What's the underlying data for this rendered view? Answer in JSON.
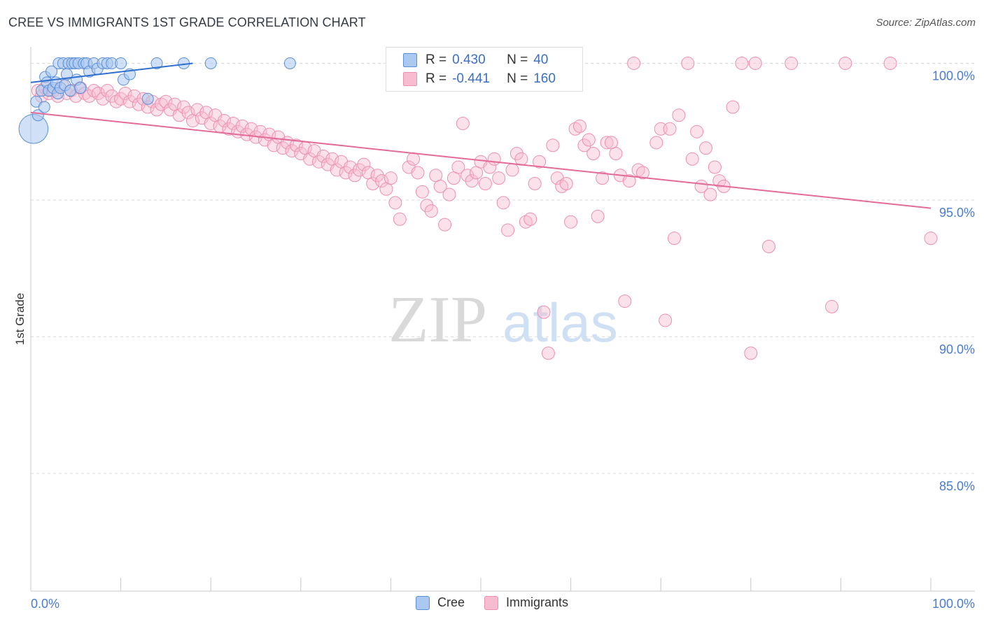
{
  "title": "CREE VS IMMIGRANTS 1ST GRADE CORRELATION CHART",
  "source": "Source: ZipAtlas.com",
  "watermark": {
    "zip": "ZIP",
    "atlas": "atlas"
  },
  "legend": {
    "rows": [
      {
        "r_label": "R =",
        "r_value": "0.430",
        "n_label": "N =",
        "n_value": "40"
      },
      {
        "r_label": "R =",
        "r_value": "-0.441",
        "n_label": "N =",
        "n_value": "160"
      }
    ]
  },
  "colors": {
    "cree_fill": "#aac8f0",
    "cree_stroke": "#5a8fd8",
    "cree_line": "#2f6fcf",
    "imm_fill": "#f7bcd0",
    "imm_stroke": "#ec8fb0",
    "imm_line": "#e46a97",
    "tick_label": "#4a7bd0",
    "grid": "#dcdcdc"
  },
  "chart_data": {
    "type": "scatter",
    "title": "CREE VS IMMIGRANTS 1ST GRADE CORRELATION CHART",
    "xlabel": "",
    "ylabel": "1st Grade",
    "xlim": [
      0,
      100
    ],
    "ylim": [
      80.7,
      100.6
    ],
    "x_tick_labels": [
      "0.0%",
      "100.0%"
    ],
    "y_ticks": [
      100,
      95,
      90,
      85
    ],
    "y_tick_labels": [
      "100.0%",
      "95.0%",
      "90.0%",
      "85.0%"
    ],
    "legend_position": "bottom",
    "series": [
      {
        "name": "Cree",
        "r": 0.43,
        "n": 40,
        "trend": {
          "x": [
            0,
            18
          ],
          "y": [
            99.3,
            100.0
          ]
        },
        "points": [
          {
            "x": 0.3,
            "y": 97.6,
            "s": 2.6
          },
          {
            "x": 0.6,
            "y": 98.6
          },
          {
            "x": 0.8,
            "y": 98.1
          },
          {
            "x": 1.2,
            "y": 99.0
          },
          {
            "x": 1.5,
            "y": 98.4
          },
          {
            "x": 1.6,
            "y": 99.5
          },
          {
            "x": 1.8,
            "y": 99.3
          },
          {
            "x": 2.0,
            "y": 99.0
          },
          {
            "x": 2.3,
            "y": 99.7
          },
          {
            "x": 2.5,
            "y": 99.1
          },
          {
            "x": 2.8,
            "y": 99.3
          },
          {
            "x": 3.0,
            "y": 98.9
          },
          {
            "x": 3.1,
            "y": 100.0
          },
          {
            "x": 3.3,
            "y": 99.1
          },
          {
            "x": 3.6,
            "y": 100.0
          },
          {
            "x": 3.8,
            "y": 99.2
          },
          {
            "x": 4.0,
            "y": 99.6
          },
          {
            "x": 4.2,
            "y": 100.0
          },
          {
            "x": 4.4,
            "y": 99.0
          },
          {
            "x": 4.6,
            "y": 100.0
          },
          {
            "x": 4.9,
            "y": 100.0
          },
          {
            "x": 5.1,
            "y": 99.4
          },
          {
            "x": 5.3,
            "y": 100.0
          },
          {
            "x": 5.5,
            "y": 99.1
          },
          {
            "x": 5.9,
            "y": 100.0
          },
          {
            "x": 6.2,
            "y": 100.0
          },
          {
            "x": 6.5,
            "y": 99.7
          },
          {
            "x": 7.0,
            "y": 100.0
          },
          {
            "x": 7.4,
            "y": 99.8
          },
          {
            "x": 8.0,
            "y": 100.0
          },
          {
            "x": 8.5,
            "y": 100.0
          },
          {
            "x": 9.0,
            "y": 100.0
          },
          {
            "x": 10.0,
            "y": 100.0
          },
          {
            "x": 10.3,
            "y": 99.4
          },
          {
            "x": 13.0,
            "y": 98.7
          },
          {
            "x": 11.0,
            "y": 99.6
          },
          {
            "x": 14.0,
            "y": 100.0
          },
          {
            "x": 17.0,
            "y": 100.0
          },
          {
            "x": 20.0,
            "y": 100.0
          },
          {
            "x": 28.8,
            "y": 100.0
          }
        ]
      },
      {
        "name": "Immigrants",
        "r": -0.441,
        "n": 160,
        "trend": {
          "x": [
            0,
            100
          ],
          "y": [
            98.2,
            94.7
          ]
        },
        "points": [
          {
            "x": 0.8,
            "y": 99.0
          },
          {
            "x": 1.2,
            "y": 98.8
          },
          {
            "x": 1.6,
            "y": 99.1
          },
          {
            "x": 2.0,
            "y": 98.9
          },
          {
            "x": 2.5,
            "y": 99.0
          },
          {
            "x": 3.0,
            "y": 98.8
          },
          {
            "x": 3.5,
            "y": 99.2
          },
          {
            "x": 4.0,
            "y": 98.9
          },
          {
            "x": 4.5,
            "y": 99.0
          },
          {
            "x": 5.0,
            "y": 98.8
          },
          {
            "x": 5.5,
            "y": 99.1
          },
          {
            "x": 6.0,
            "y": 98.9
          },
          {
            "x": 6.5,
            "y": 98.8
          },
          {
            "x": 7.0,
            "y": 99.0
          },
          {
            "x": 7.5,
            "y": 98.9
          },
          {
            "x": 8.0,
            "y": 98.7
          },
          {
            "x": 8.5,
            "y": 99.0
          },
          {
            "x": 9.0,
            "y": 98.8
          },
          {
            "x": 9.5,
            "y": 98.6
          },
          {
            "x": 10.0,
            "y": 98.7
          },
          {
            "x": 10.5,
            "y": 98.9
          },
          {
            "x": 11.0,
            "y": 98.6
          },
          {
            "x": 11.5,
            "y": 98.8
          },
          {
            "x": 12.0,
            "y": 98.5
          },
          {
            "x": 12.5,
            "y": 98.7
          },
          {
            "x": 13.0,
            "y": 98.4
          },
          {
            "x": 13.5,
            "y": 98.6
          },
          {
            "x": 14.0,
            "y": 98.3
          },
          {
            "x": 14.5,
            "y": 98.5
          },
          {
            "x": 15.0,
            "y": 98.6
          },
          {
            "x": 15.5,
            "y": 98.3
          },
          {
            "x": 16.0,
            "y": 98.5
          },
          {
            "x": 16.5,
            "y": 98.1
          },
          {
            "x": 17.0,
            "y": 98.4
          },
          {
            "x": 17.5,
            "y": 98.2
          },
          {
            "x": 18.0,
            "y": 97.9
          },
          {
            "x": 18.5,
            "y": 98.3
          },
          {
            "x": 19.0,
            "y": 98.0
          },
          {
            "x": 19.5,
            "y": 98.2
          },
          {
            "x": 20.0,
            "y": 97.8
          },
          {
            "x": 20.5,
            "y": 98.1
          },
          {
            "x": 21.0,
            "y": 97.7
          },
          {
            "x": 21.5,
            "y": 97.9
          },
          {
            "x": 22.0,
            "y": 97.6
          },
          {
            "x": 22.5,
            "y": 97.8
          },
          {
            "x": 23.0,
            "y": 97.5
          },
          {
            "x": 23.5,
            "y": 97.7
          },
          {
            "x": 24.0,
            "y": 97.4
          },
          {
            "x": 24.5,
            "y": 97.6
          },
          {
            "x": 25.0,
            "y": 97.3
          },
          {
            "x": 25.5,
            "y": 97.5
          },
          {
            "x": 26.0,
            "y": 97.2
          },
          {
            "x": 26.5,
            "y": 97.4
          },
          {
            "x": 27.0,
            "y": 97.0
          },
          {
            "x": 27.5,
            "y": 97.3
          },
          {
            "x": 28.0,
            "y": 96.9
          },
          {
            "x": 28.5,
            "y": 97.1
          },
          {
            "x": 29.0,
            "y": 96.8
          },
          {
            "x": 29.5,
            "y": 97.0
          },
          {
            "x": 30.0,
            "y": 96.7
          },
          {
            "x": 30.5,
            "y": 96.9
          },
          {
            "x": 31.0,
            "y": 96.5
          },
          {
            "x": 31.5,
            "y": 96.8
          },
          {
            "x": 32.0,
            "y": 96.4
          },
          {
            "x": 32.5,
            "y": 96.6
          },
          {
            "x": 33.0,
            "y": 96.3
          },
          {
            "x": 33.5,
            "y": 96.5
          },
          {
            "x": 34.0,
            "y": 96.1
          },
          {
            "x": 34.5,
            "y": 96.4
          },
          {
            "x": 35.0,
            "y": 96.0
          },
          {
            "x": 35.5,
            "y": 96.2
          },
          {
            "x": 36.0,
            "y": 95.9
          },
          {
            "x": 36.5,
            "y": 96.1
          },
          {
            "x": 37.0,
            "y": 96.3
          },
          {
            "x": 37.5,
            "y": 96.0
          },
          {
            "x": 38.0,
            "y": 95.6
          },
          {
            "x": 38.5,
            "y": 95.9
          },
          {
            "x": 39.0,
            "y": 95.7
          },
          {
            "x": 39.5,
            "y": 95.4
          },
          {
            "x": 40.0,
            "y": 95.8
          },
          {
            "x": 40.5,
            "y": 94.9
          },
          {
            "x": 41.0,
            "y": 94.3
          },
          {
            "x": 42.0,
            "y": 96.2
          },
          {
            "x": 42.5,
            "y": 96.5
          },
          {
            "x": 43.0,
            "y": 96.0
          },
          {
            "x": 43.5,
            "y": 95.3
          },
          {
            "x": 44.0,
            "y": 94.8
          },
          {
            "x": 44.5,
            "y": 94.6
          },
          {
            "x": 45.0,
            "y": 95.9
          },
          {
            "x": 45.5,
            "y": 95.5
          },
          {
            "x": 46.0,
            "y": 94.1
          },
          {
            "x": 46.5,
            "y": 95.2
          },
          {
            "x": 47.0,
            "y": 95.8
          },
          {
            "x": 47.5,
            "y": 96.2
          },
          {
            "x": 48.0,
            "y": 97.8
          },
          {
            "x": 48.5,
            "y": 95.9
          },
          {
            "x": 49.0,
            "y": 95.7
          },
          {
            "x": 49.5,
            "y": 96.0
          },
          {
            "x": 50.0,
            "y": 96.4
          },
          {
            "x": 50.5,
            "y": 95.6
          },
          {
            "x": 51.0,
            "y": 96.2
          },
          {
            "x": 51.5,
            "y": 96.5
          },
          {
            "x": 52.0,
            "y": 95.8
          },
          {
            "x": 52.5,
            "y": 94.9
          },
          {
            "x": 53.0,
            "y": 93.9
          },
          {
            "x": 53.5,
            "y": 96.1
          },
          {
            "x": 54.0,
            "y": 96.7
          },
          {
            "x": 54.5,
            "y": 96.5
          },
          {
            "x": 55.0,
            "y": 94.2
          },
          {
            "x": 55.5,
            "y": 94.3
          },
          {
            "x": 56.0,
            "y": 95.6
          },
          {
            "x": 56.5,
            "y": 96.4
          },
          {
            "x": 57.0,
            "y": 90.9
          },
          {
            "x": 57.5,
            "y": 89.4
          },
          {
            "x": 58.0,
            "y": 97.0
          },
          {
            "x": 58.5,
            "y": 95.8
          },
          {
            "x": 59.0,
            "y": 95.5
          },
          {
            "x": 59.5,
            "y": 95.6
          },
          {
            "x": 60.0,
            "y": 94.2
          },
          {
            "x": 60.5,
            "y": 97.6
          },
          {
            "x": 61.0,
            "y": 97.7
          },
          {
            "x": 61.5,
            "y": 97.0
          },
          {
            "x": 62.0,
            "y": 97.2
          },
          {
            "x": 62.5,
            "y": 96.7
          },
          {
            "x": 63.0,
            "y": 94.4
          },
          {
            "x": 63.5,
            "y": 95.8
          },
          {
            "x": 64.0,
            "y": 97.1
          },
          {
            "x": 64.5,
            "y": 97.1
          },
          {
            "x": 65.0,
            "y": 96.7
          },
          {
            "x": 65.5,
            "y": 95.9
          },
          {
            "x": 66.0,
            "y": 91.3
          },
          {
            "x": 66.5,
            "y": 95.7
          },
          {
            "x": 67.0,
            "y": 100.0
          },
          {
            "x": 67.5,
            "y": 96.1
          },
          {
            "x": 68.0,
            "y": 96.0
          },
          {
            "x": 69.5,
            "y": 97.1
          },
          {
            "x": 70.0,
            "y": 97.6
          },
          {
            "x": 70.5,
            "y": 90.6
          },
          {
            "x": 71.0,
            "y": 97.6
          },
          {
            "x": 71.5,
            "y": 93.6
          },
          {
            "x": 72.0,
            "y": 98.1
          },
          {
            "x": 73.0,
            "y": 100.0
          },
          {
            "x": 73.5,
            "y": 96.5
          },
          {
            "x": 74.0,
            "y": 97.5
          },
          {
            "x": 74.5,
            "y": 95.5
          },
          {
            "x": 75.0,
            "y": 96.9
          },
          {
            "x": 75.5,
            "y": 95.2
          },
          {
            "x": 76.0,
            "y": 96.2
          },
          {
            "x": 76.5,
            "y": 95.7
          },
          {
            "x": 77.0,
            "y": 95.5
          },
          {
            "x": 78.0,
            "y": 98.4
          },
          {
            "x": 79.0,
            "y": 100.0
          },
          {
            "x": 80.0,
            "y": 89.4
          },
          {
            "x": 80.5,
            "y": 100.0
          },
          {
            "x": 82.0,
            "y": 93.3
          },
          {
            "x": 84.5,
            "y": 100.0
          },
          {
            "x": 89.0,
            "y": 91.1
          },
          {
            "x": 90.5,
            "y": 100.0
          },
          {
            "x": 95.5,
            "y": 100.0
          },
          {
            "x": 100.0,
            "y": 93.6
          }
        ]
      }
    ]
  }
}
